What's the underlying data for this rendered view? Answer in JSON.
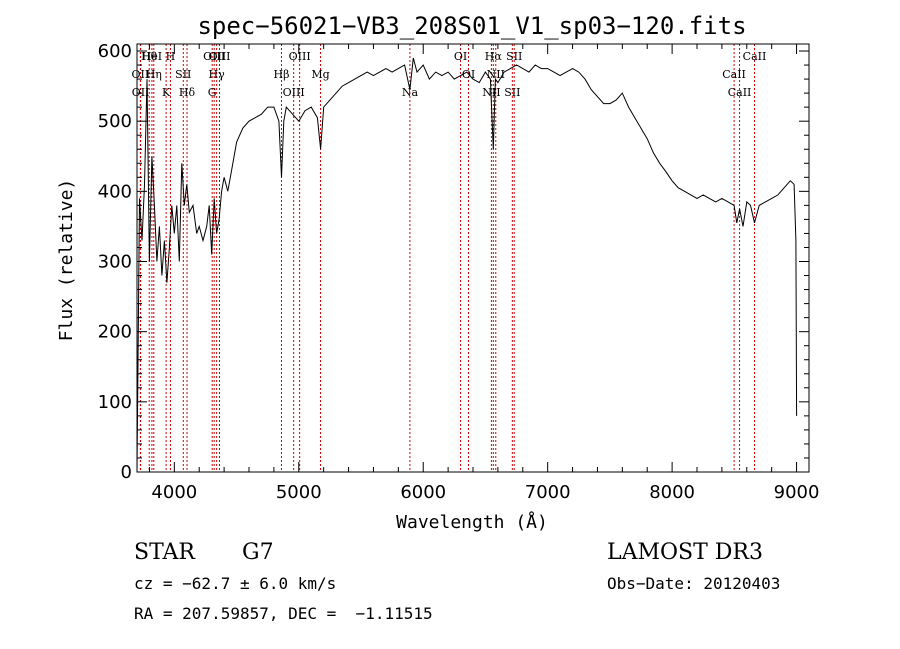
{
  "chart_data": {
    "type": "line",
    "title": "spec−56021−VB3_208S01_V1_sp03−120.fits",
    "xlabel": "Wavelength (Å)",
    "ylabel": "Flux (relative)",
    "xlim": [
      3700,
      9100
    ],
    "ylim": [
      0,
      610
    ],
    "xticks": [
      4000,
      5000,
      6000,
      7000,
      8000,
      9000
    ],
    "yticks": [
      0,
      100,
      200,
      300,
      400,
      500,
      600
    ],
    "series": [
      {
        "name": "flux",
        "x": [
          3700,
          3720,
          3740,
          3760,
          3780,
          3800,
          3820,
          3840,
          3860,
          3880,
          3900,
          3920,
          3940,
          3960,
          3980,
          4000,
          4020,
          4040,
          4060,
          4080,
          4100,
          4120,
          4150,
          4180,
          4200,
          4230,
          4260,
          4280,
          4300,
          4320,
          4340,
          4360,
          4380,
          4400,
          4430,
          4460,
          4500,
          4550,
          4600,
          4650,
          4700,
          4750,
          4800,
          4840,
          4861,
          4880,
          4900,
          4950,
          5000,
          5050,
          5100,
          5150,
          5175,
          5200,
          5250,
          5300,
          5350,
          5400,
          5450,
          5500,
          5550,
          5600,
          5650,
          5700,
          5750,
          5800,
          5850,
          5893,
          5920,
          5950,
          6000,
          6050,
          6100,
          6150,
          6200,
          6250,
          6300,
          6350,
          6400,
          6450,
          6500,
          6540,
          6563,
          6580,
          6600,
          6650,
          6700,
          6750,
          6800,
          6850,
          6900,
          6950,
          7000,
          7050,
          7100,
          7150,
          7200,
          7250,
          7300,
          7350,
          7400,
          7450,
          7500,
          7550,
          7600,
          7650,
          7700,
          7750,
          7800,
          7850,
          7900,
          7950,
          8000,
          8050,
          8100,
          8150,
          8200,
          8250,
          8300,
          8350,
          8400,
          8450,
          8498,
          8520,
          8542,
          8570,
          8600,
          8630,
          8662,
          8700,
          8750,
          8800,
          8850,
          8900,
          8950,
          8980,
          8995,
          9000
        ],
        "y": [
          0,
          390,
          330,
          410,
          560,
          300,
          450,
          380,
          300,
          350,
          280,
          330,
          270,
          320,
          380,
          340,
          380,
          300,
          440,
          380,
          410,
          370,
          380,
          340,
          350,
          330,
          350,
          380,
          310,
          390,
          340,
          360,
          400,
          420,
          400,
          430,
          470,
          490,
          500,
          505,
          510,
          520,
          520,
          500,
          420,
          500,
          520,
          510,
          500,
          515,
          520,
          505,
          460,
          520,
          530,
          540,
          550,
          555,
          560,
          565,
          570,
          565,
          570,
          575,
          570,
          575,
          580,
          545,
          590,
          570,
          580,
          560,
          570,
          565,
          570,
          560,
          565,
          570,
          560,
          555,
          570,
          560,
          460,
          560,
          555,
          570,
          575,
          580,
          575,
          570,
          580,
          575,
          575,
          570,
          565,
          570,
          575,
          570,
          560,
          545,
          535,
          525,
          525,
          530,
          540,
          520,
          505,
          490,
          475,
          455,
          440,
          428,
          415,
          405,
          400,
          395,
          390,
          395,
          390,
          385,
          390,
          385,
          380,
          355,
          375,
          350,
          385,
          380,
          355,
          380,
          385,
          390,
          395,
          405,
          415,
          410,
          330,
          80
        ]
      }
    ],
    "lines": [
      {
        "label": "Hθ",
        "x": 3798
      },
      {
        "label": "OII",
        "x": 3727
      },
      {
        "label": "OII",
        "x": 3729
      },
      {
        "label": "HeI",
        "x": 3820
      },
      {
        "label": "Hη",
        "x": 3835
      },
      {
        "label": "K",
        "x": 3934
      },
      {
        "label": "H",
        "x": 3969
      },
      {
        "label": "SII",
        "x": 4072
      },
      {
        "label": "Hδ",
        "x": 4102
      },
      {
        "label": "OIII",
        "x": 4320
      },
      {
        "label": "Hγ",
        "x": 4340
      },
      {
        "label": "G",
        "x": 4304
      },
      {
        "label": "OIII",
        "x": 4363
      },
      {
        "label": "Hβ",
        "x": 4861
      },
      {
        "label": "OIII",
        "x": 4959
      },
      {
        "label": "OIII",
        "x": 5007
      },
      {
        "label": "Mg",
        "x": 5175
      },
      {
        "label": "Na",
        "x": 5893
      },
      {
        "label": "OI",
        "x": 6300
      },
      {
        "label": "OI",
        "x": 6364
      },
      {
        "label": "NII",
        "x": 6548
      },
      {
        "label": "Hα",
        "x": 6563
      },
      {
        "label": "NII",
        "x": 6583
      },
      {
        "label": "SII",
        "x": 6716
      },
      {
        "label": "SII",
        "x": 6731
      },
      {
        "label": "CaII",
        "x": 8498
      },
      {
        "label": "CaII",
        "x": 8542
      },
      {
        "label": "CaII",
        "x": 8662
      }
    ]
  },
  "footer": {
    "object_class": "STAR",
    "subclass": "G7",
    "survey": "LAMOST DR3",
    "cz": "cz = −62.7 ± 6.0 km/s",
    "obs_date": "Obs−Date: 20120403",
    "radec": "RA = 207.59857, DEC =  −1.11515"
  }
}
